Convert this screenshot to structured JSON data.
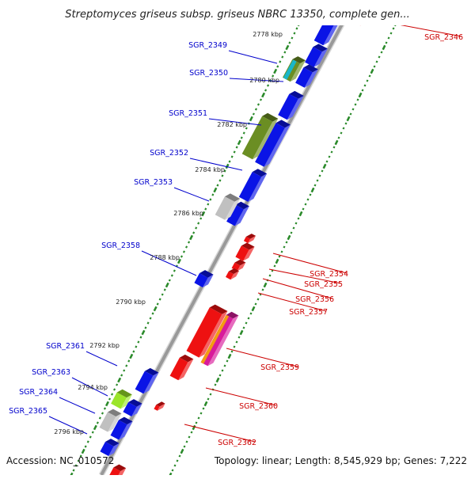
{
  "title": "Streptomyces griseus subsp. griseus NBRC 13350, complete gen...",
  "footer": {
    "accession": "Accession: NC_010572",
    "summary": "Topology: linear; Length: 8,545,929 bp; Genes: 7,222"
  },
  "colors": {
    "forward_label": "#0000cc",
    "reverse_label": "#cc0000",
    "tick_marks": "#2a8a2a",
    "backbone": "#999999"
  },
  "ruler": {
    "unit": "kbp",
    "ticks": [
      "2778 kbp",
      "2780 kbp",
      "2782 kbp",
      "2784 kbp",
      "2786 kbp",
      "2788 kbp",
      "2790 kbp",
      "2792 kbp",
      "2794 kbp",
      "2796 kbp"
    ]
  },
  "forward_genes": [
    "SGR_2349",
    "SGR_2350",
    "SGR_2351",
    "SGR_2352",
    "SGR_2353",
    "SGR_2358",
    "SGR_2361",
    "SGR_2363",
    "SGR_2364",
    "SGR_2365"
  ],
  "reverse_genes": [
    "SGR_2346",
    "SGR_2354",
    "SGR_2355",
    "SGR_2356",
    "SGR_2357",
    "SGR_2359",
    "SGR_2360",
    "SGR_2362"
  ],
  "feature_colors": {
    "blue": "#0a14e6",
    "red": "#ee1111",
    "olive": "#6b8e23",
    "cyan": "#18b6c8",
    "gray": "#c0c0c0",
    "lime": "#9be52a",
    "magenta": "#d81b9b",
    "orange": "#f39c12",
    "pink": "#ff9999"
  }
}
